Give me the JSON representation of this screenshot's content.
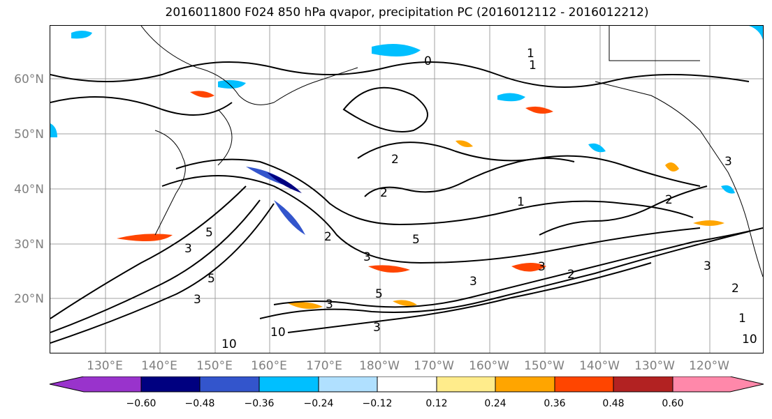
{
  "title": "2016011800 F024 850 hPa qvapor, precipitation PC (2016012112 - 2016012212)",
  "map": {
    "lat_labels": [
      "60°N",
      "50°N",
      "40°N",
      "30°N",
      "20°N"
    ],
    "lon_labels": [
      "130°E",
      "140°E",
      "150°E",
      "160°E",
      "170°E",
      "180°W",
      "170°W",
      "160°W",
      "150°W",
      "140°W",
      "130°W",
      "120°W"
    ],
    "contour_labels": [
      "1",
      "1",
      "0",
      "2",
      "2",
      "1",
      "5",
      "3",
      "3",
      "5",
      "2",
      "3",
      "5",
      "3",
      "3",
      "3",
      "10",
      "10",
      "2",
      "1",
      "3",
      "2",
      "5",
      "3",
      "2",
      "10",
      "3"
    ]
  },
  "colorbar": {
    "colors": [
      "#9933cc",
      "#000080",
      "#3355cc",
      "#00bfff",
      "#b0e0ff",
      "#ffffff",
      "#ffec8b",
      "#ffa500",
      "#ff4500",
      "#b22222",
      "#ff88aa"
    ],
    "tick_labels": [
      "−0.60",
      "−0.48",
      "−0.36",
      "−0.24",
      "−0.12",
      "0.12",
      "0.24",
      "0.36",
      "0.48",
      "0.60"
    ]
  }
}
